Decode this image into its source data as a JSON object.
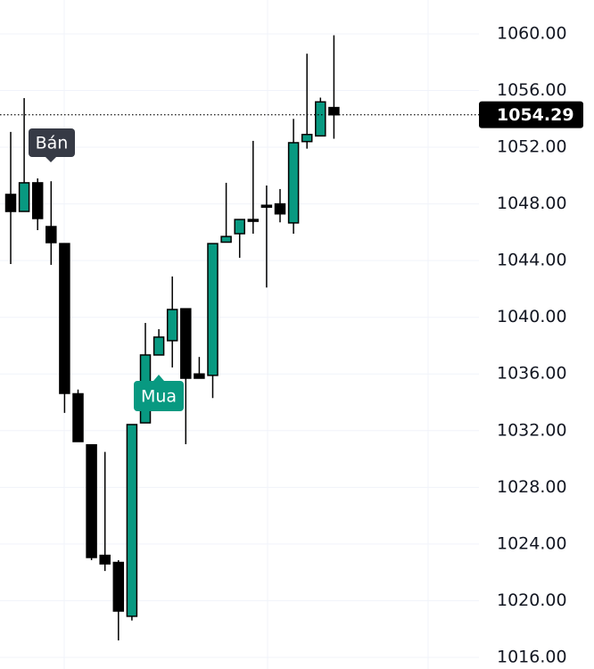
{
  "chart_data": {
    "type": "candlestick",
    "open": [
      1048.67,
      1047.47,
      1049.49,
      1046.4,
      1045.2,
      1034.6,
      1031.0,
      1023.2,
      1022.7,
      1018.9,
      1032.55,
      1037.34,
      1038.35,
      1040.6,
      1036.0,
      1035.9,
      1045.3,
      1045.9,
      1046.9,
      1047.9,
      1048.0,
      1046.66,
      1052.4,
      1052.8,
      1054.8
    ],
    "high": [
      1053.08,
      1055.47,
      1049.8,
      1049.6,
      1045.2,
      1034.9,
      1031.0,
      1030.5,
      1022.86,
      1032.43,
      1039.6,
      1039.16,
      1042.88,
      1040.6,
      1037.2,
      1045.2,
      1049.49,
      1046.9,
      1052.45,
      1049.3,
      1049.05,
      1054.0,
      1058.6,
      1055.5,
      1059.9
    ],
    "low": [
      1043.76,
      1047.47,
      1046.15,
      1043.7,
      1033.25,
      1031.23,
      1022.86,
      1022.1,
      1017.2,
      1018.6,
      1032.55,
      1037.34,
      1036.46,
      1031.04,
      1035.7,
      1034.3,
      1045.3,
      1044.2,
      1045.9,
      1042.1,
      1046.7,
      1045.9,
      1051.9,
      1052.8,
      1052.6
    ],
    "close": [
      1047.47,
      1049.49,
      1046.97,
      1045.27,
      1034.63,
      1031.23,
      1023.05,
      1022.6,
      1019.27,
      1032.43,
      1037.34,
      1038.6,
      1040.55,
      1035.7,
      1035.7,
      1045.2,
      1045.7,
      1046.9,
      1046.85,
      1047.85,
      1047.3,
      1052.32,
      1052.9,
      1055.2,
      1054.29
    ],
    "up_color": "#089981",
    "down_color": "#000000",
    "annotations": [
      "Bán",
      "Mua"
    ],
    "ylim": [
      1015.18,
      1062.39
    ],
    "yticks": [
      {
        "value": 1060,
        "label": "1060.00"
      },
      {
        "value": 1056,
        "label": "1056.00"
      },
      {
        "value": 1052,
        "label": "1052.00"
      },
      {
        "value": 1048,
        "label": "1048.00"
      },
      {
        "value": 1044,
        "label": "1044.00"
      },
      {
        "value": 1040,
        "label": "1040.00"
      },
      {
        "value": 1036,
        "label": "1036.00"
      },
      {
        "value": 1032,
        "label": "1032.00"
      },
      {
        "value": 1028,
        "label": "1028.00"
      },
      {
        "value": 1024,
        "label": "1024.00"
      },
      {
        "value": 1020,
        "label": "1020.00"
      },
      {
        "value": 1016,
        "label": "1016.00"
      }
    ],
    "grid": true
  }
}
